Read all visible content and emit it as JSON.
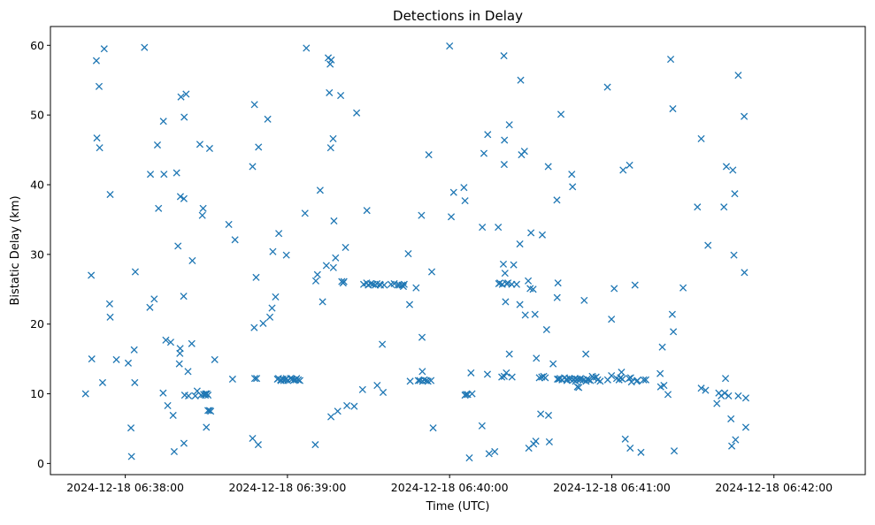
{
  "chart_data": {
    "type": "scatter",
    "title": "Detections in Delay",
    "xlabel": "Time (UTC)",
    "ylabel": "Bistatic Delay (km)",
    "marker": "x",
    "color": "#1f77b4",
    "grid": false,
    "legend": "none",
    "x_unit": "time",
    "x_reference_label": "2024-12-18 06:38:00",
    "xlim_seconds": [
      -27.7,
      273.8
    ],
    "ylim": [
      -1.6,
      62.7
    ],
    "x_ticks": [
      {
        "value": 0,
        "label": "2024-12-18 06:38:00"
      },
      {
        "value": 60,
        "label": "2024-12-18 06:39:00"
      },
      {
        "value": 120,
        "label": "2024-12-18 06:40:00"
      },
      {
        "value": 180,
        "label": "2024-12-18 06:41:00"
      },
      {
        "value": 240,
        "label": "2024-12-18 06:42:00"
      }
    ],
    "y_ticks": [
      0,
      10,
      20,
      30,
      40,
      50,
      60
    ],
    "points_seconds_after_reference": [
      [
        -14.7,
        10.0
      ],
      [
        -12.6,
        27.0
      ],
      [
        -12.4,
        15.0
      ],
      [
        -10.7,
        57.8
      ],
      [
        -10.5,
        46.7
      ],
      [
        -9.7,
        54.1
      ],
      [
        -9.5,
        45.3
      ],
      [
        -8.4,
        11.6
      ],
      [
        -7.8,
        59.5
      ],
      [
        -5.8,
        22.9
      ],
      [
        -5.6,
        21.0
      ],
      [
        -5.6,
        38.6
      ],
      [
        -3.3,
        14.9
      ],
      [
        1.1,
        14.4
      ],
      [
        2.1,
        5.1
      ],
      [
        2.3,
        1.0
      ],
      [
        3.3,
        16.3
      ],
      [
        3.5,
        11.6
      ],
      [
        3.7,
        27.5
      ],
      [
        7.1,
        59.7
      ],
      [
        9.1,
        22.4
      ],
      [
        9.3,
        41.5
      ],
      [
        10.7,
        23.6
      ],
      [
        11.9,
        45.7
      ],
      [
        12.3,
        36.6
      ],
      [
        14.0,
        10.1
      ],
      [
        14.1,
        49.1
      ],
      [
        14.3,
        41.5
      ],
      [
        15.0,
        17.7
      ],
      [
        15.7,
        8.3
      ],
      [
        16.8,
        17.4
      ],
      [
        17.7,
        6.9
      ],
      [
        18.1,
        1.7
      ],
      [
        19.0,
        41.7
      ],
      [
        19.5,
        31.2
      ],
      [
        20.0,
        14.3
      ],
      [
        20.2,
        15.8
      ],
      [
        20.3,
        16.5
      ],
      [
        20.4,
        38.3
      ],
      [
        20.6,
        52.6
      ],
      [
        21.6,
        24.0
      ],
      [
        21.7,
        2.9
      ],
      [
        21.7,
        38.0
      ],
      [
        21.8,
        49.7
      ],
      [
        22.0,
        9.8
      ],
      [
        22.5,
        53.0
      ],
      [
        23.2,
        13.2
      ],
      [
        23.4,
        9.7
      ],
      [
        24.6,
        17.2
      ],
      [
        24.8,
        29.1
      ],
      [
        25.9,
        9.7
      ],
      [
        26.6,
        10.4
      ],
      [
        27.6,
        45.8
      ],
      [
        28.0,
        9.8
      ],
      [
        28.5,
        35.6
      ],
      [
        28.8,
        36.6
      ],
      [
        29.0,
        9.9
      ],
      [
        29.6,
        9.8
      ],
      [
        29.7,
        10.0
      ],
      [
        30.0,
        5.2
      ],
      [
        30.2,
        10.0
      ],
      [
        30.6,
        9.8
      ],
      [
        30.6,
        7.6
      ],
      [
        31.2,
        45.2
      ],
      [
        31.2,
        7.6
      ],
      [
        31.6,
        7.5
      ],
      [
        33.1,
        14.9
      ],
      [
        38.3,
        34.3
      ],
      [
        39.7,
        12.1
      ],
      [
        40.6,
        32.1
      ],
      [
        47.1,
        42.6
      ],
      [
        47.1,
        3.6
      ],
      [
        47.7,
        19.5
      ],
      [
        47.8,
        51.5
      ],
      [
        47.9,
        12.2
      ],
      [
        48.4,
        26.7
      ],
      [
        48.6,
        12.2
      ],
      [
        49.2,
        2.7
      ],
      [
        49.3,
        45.4
      ],
      [
        51.0,
        20.1
      ],
      [
        52.7,
        49.4
      ],
      [
        53.5,
        21.0
      ],
      [
        54.3,
        22.3
      ],
      [
        54.6,
        30.4
      ],
      [
        55.6,
        23.9
      ],
      [
        56.3,
        12.1
      ],
      [
        56.7,
        12.2
      ],
      [
        56.8,
        33.0
      ],
      [
        57.5,
        12.0
      ],
      [
        57.6,
        11.9
      ],
      [
        58.3,
        12.1
      ],
      [
        58.6,
        11.9
      ],
      [
        59.2,
        12.0
      ],
      [
        59.6,
        29.9
      ],
      [
        59.6,
        12.2
      ],
      [
        60.1,
        11.9
      ],
      [
        61.1,
        12.2
      ],
      [
        61.8,
        12.1
      ],
      [
        62.5,
        12.0
      ],
      [
        63.1,
        12.0
      ],
      [
        63.4,
        12.2
      ],
      [
        64.0,
        12.0
      ],
      [
        64.6,
        11.9
      ],
      [
        66.5,
        35.9
      ],
      [
        67.0,
        59.6
      ],
      [
        70.3,
        2.7
      ],
      [
        70.5,
        26.2
      ],
      [
        71.1,
        27.1
      ],
      [
        72.1,
        39.2
      ],
      [
        73.0,
        23.2
      ],
      [
        74.4,
        28.4
      ],
      [
        75.1,
        58.2
      ],
      [
        75.5,
        53.2
      ],
      [
        75.8,
        57.3
      ],
      [
        76.0,
        45.3
      ],
      [
        76.1,
        6.7
      ],
      [
        76.2,
        57.9
      ],
      [
        76.9,
        46.6
      ],
      [
        77.0,
        28.1
      ],
      [
        77.2,
        34.8
      ],
      [
        77.8,
        29.5
      ],
      [
        78.6,
        7.5
      ],
      [
        79.7,
        52.8
      ],
      [
        80.1,
        26.1
      ],
      [
        80.6,
        25.9
      ],
      [
        80.9,
        26.1
      ],
      [
        81.5,
        31.0
      ],
      [
        82.0,
        8.3
      ],
      [
        84.7,
        8.2
      ],
      [
        85.6,
        50.3
      ],
      [
        87.8,
        10.6
      ],
      [
        88.2,
        25.7
      ],
      [
        89.3,
        25.9
      ],
      [
        89.4,
        36.3
      ],
      [
        89.9,
        25.6
      ],
      [
        90.8,
        25.8
      ],
      [
        91.6,
        25.7
      ],
      [
        92.5,
        25.6
      ],
      [
        93.1,
        25.8
      ],
      [
        93.2,
        11.2
      ],
      [
        94.2,
        25.7
      ],
      [
        94.4,
        25.6
      ],
      [
        95.1,
        17.1
      ],
      [
        95.4,
        10.2
      ],
      [
        95.8,
        25.6
      ],
      [
        98.3,
        25.7
      ],
      [
        99.5,
        25.8
      ],
      [
        100.8,
        25.6
      ],
      [
        101.5,
        25.6
      ],
      [
        102.4,
        25.6
      ],
      [
        102.9,
        25.4
      ],
      [
        103.2,
        25.7
      ],
      [
        104.7,
        30.1
      ],
      [
        105.2,
        22.8
      ],
      [
        105.4,
        11.8
      ],
      [
        107.6,
        25.2
      ],
      [
        108.4,
        11.9
      ],
      [
        109.0,
        11.9
      ],
      [
        109.6,
        35.6
      ],
      [
        109.8,
        18.1
      ],
      [
        109.9,
        13.2
      ],
      [
        110.0,
        11.8
      ],
      [
        110.6,
        12.0
      ],
      [
        111.4,
        11.9
      ],
      [
        112.0,
        11.8
      ],
      [
        112.3,
        44.3
      ],
      [
        113.1,
        11.9
      ],
      [
        113.4,
        27.5
      ],
      [
        113.9,
        5.1
      ],
      [
        120.0,
        59.9
      ],
      [
        120.6,
        35.4
      ],
      [
        121.5,
        38.9
      ],
      [
        125.3,
        39.6
      ],
      [
        125.7,
        9.8
      ],
      [
        125.7,
        37.7
      ],
      [
        126.1,
        9.9
      ],
      [
        126.7,
        9.9
      ],
      [
        127.3,
        0.8
      ],
      [
        127.9,
        13.0
      ],
      [
        128.3,
        10.0
      ],
      [
        132.0,
        5.4
      ],
      [
        132.1,
        33.9
      ],
      [
        132.7,
        44.5
      ],
      [
        134.0,
        12.8
      ],
      [
        134.1,
        47.2
      ],
      [
        134.6,
        1.4
      ],
      [
        136.7,
        1.7
      ],
      [
        138.0,
        33.9
      ],
      [
        138.2,
        25.8
      ],
      [
        138.6,
        25.9
      ],
      [
        139.3,
        12.4
      ],
      [
        139.5,
        25.7
      ],
      [
        139.9,
        28.6
      ],
      [
        140.1,
        58.5
      ],
      [
        140.2,
        12.5
      ],
      [
        140.2,
        42.9
      ],
      [
        140.3,
        46.4
      ],
      [
        140.5,
        27.3
      ],
      [
        140.7,
        23.2
      ],
      [
        141.0,
        13.0
      ],
      [
        141.1,
        25.8
      ],
      [
        141.6,
        25.9
      ],
      [
        142.1,
        15.7
      ],
      [
        142.1,
        48.6
      ],
      [
        143.0,
        25.7
      ],
      [
        143.1,
        12.4
      ],
      [
        143.7,
        28.5
      ],
      [
        144.8,
        25.7
      ],
      [
        146.0,
        22.8
      ],
      [
        146.0,
        31.5
      ],
      [
        146.3,
        55.0
      ],
      [
        146.6,
        44.3
      ],
      [
        147.7,
        44.8
      ],
      [
        148.0,
        21.3
      ],
      [
        149.1,
        26.2
      ],
      [
        149.3,
        2.2
      ],
      [
        149.8,
        25.1
      ],
      [
        150.1,
        33.1
      ],
      [
        150.9,
        25.0
      ],
      [
        151.1,
        2.8
      ],
      [
        151.6,
        21.4
      ],
      [
        151.9,
        3.2
      ],
      [
        152.1,
        15.1
      ],
      [
        153.2,
        12.3
      ],
      [
        153.7,
        7.1
      ],
      [
        154.1,
        12.4
      ],
      [
        154.3,
        32.8
      ],
      [
        154.8,
        12.5
      ],
      [
        155.4,
        12.3
      ],
      [
        155.9,
        19.2
      ],
      [
        156.5,
        42.6
      ],
      [
        156.6,
        6.9
      ],
      [
        156.9,
        3.1
      ],
      [
        158.3,
        14.3
      ],
      [
        159.7,
        37.8
      ],
      [
        159.8,
        23.8
      ],
      [
        159.9,
        12.1
      ],
      [
        160.1,
        25.9
      ],
      [
        160.4,
        12.1
      ],
      [
        160.9,
        12.2
      ],
      [
        161.2,
        50.1
      ],
      [
        161.6,
        12.0
      ],
      [
        162.5,
        12.3
      ],
      [
        163.3,
        12.1
      ],
      [
        163.4,
        11.9
      ],
      [
        164.2,
        12.2
      ],
      [
        164.7,
        12.1
      ],
      [
        165.2,
        41.5
      ],
      [
        165.5,
        39.7
      ],
      [
        165.8,
        12.0
      ],
      [
        166.4,
        12.2
      ],
      [
        166.6,
        11.8
      ],
      [
        167.2,
        12.1
      ],
      [
        167.3,
        11.0
      ],
      [
        167.8,
        10.9
      ],
      [
        168.3,
        12.0
      ],
      [
        168.4,
        12.2
      ],
      [
        169.5,
        12.0
      ],
      [
        169.8,
        23.4
      ],
      [
        170.4,
        15.7
      ],
      [
        170.5,
        11.8
      ],
      [
        170.9,
        12.1
      ],
      [
        171.5,
        12.0
      ],
      [
        172.1,
        11.9
      ],
      [
        172.8,
        12.5
      ],
      [
        173.2,
        12.3
      ],
      [
        174.2,
        12.4
      ],
      [
        174.8,
        12.0
      ],
      [
        175.7,
        11.8
      ],
      [
        178.4,
        54.0
      ],
      [
        178.5,
        12.0
      ],
      [
        179.9,
        20.7
      ],
      [
        179.9,
        12.6
      ],
      [
        180.9,
        25.1
      ],
      [
        181.8,
        12.2
      ],
      [
        182.7,
        12.0
      ],
      [
        183.2,
        12.3
      ],
      [
        183.6,
        13.1
      ],
      [
        183.9,
        12.1
      ],
      [
        184.2,
        42.1
      ],
      [
        185.0,
        3.5
      ],
      [
        186.4,
        12.2
      ],
      [
        186.6,
        42.8
      ],
      [
        186.8,
        2.2
      ],
      [
        187.0,
        12.3
      ],
      [
        187.3,
        11.7
      ],
      [
        188.6,
        25.6
      ],
      [
        189.2,
        11.8
      ],
      [
        189.5,
        11.9
      ],
      [
        190.8,
        1.6
      ],
      [
        191.8,
        12.0
      ],
      [
        192.6,
        12.0
      ],
      [
        197.9,
        12.9
      ],
      [
        198.1,
        11.0
      ],
      [
        198.7,
        16.7
      ],
      [
        199.3,
        11.2
      ],
      [
        200.8,
        9.9
      ],
      [
        201.8,
        58.0
      ],
      [
        202.4,
        21.4
      ],
      [
        202.6,
        50.9
      ],
      [
        202.8,
        18.9
      ],
      [
        203.1,
        1.8
      ],
      [
        206.4,
        25.2
      ],
      [
        211.7,
        36.8
      ],
      [
        213.1,
        46.6
      ],
      [
        213.1,
        10.8
      ],
      [
        214.7,
        10.5
      ],
      [
        215.6,
        31.3
      ],
      [
        218.9,
        8.6
      ],
      [
        219.6,
        10.1
      ],
      [
        220.5,
        9.7
      ],
      [
        221.5,
        36.8
      ],
      [
        221.8,
        10.1
      ],
      [
        222.1,
        12.2
      ],
      [
        222.4,
        42.6
      ],
      [
        223.2,
        9.7
      ],
      [
        224.1,
        6.4
      ],
      [
        224.4,
        2.5
      ],
      [
        224.8,
        42.1
      ],
      [
        225.2,
        29.9
      ],
      [
        225.5,
        38.7
      ],
      [
        225.8,
        3.4
      ],
      [
        226.8,
        55.7
      ],
      [
        226.8,
        9.7
      ],
      [
        229.0,
        49.8
      ],
      [
        229.1,
        27.4
      ],
      [
        229.6,
        9.4
      ],
      [
        229.6,
        5.2
      ]
    ]
  }
}
